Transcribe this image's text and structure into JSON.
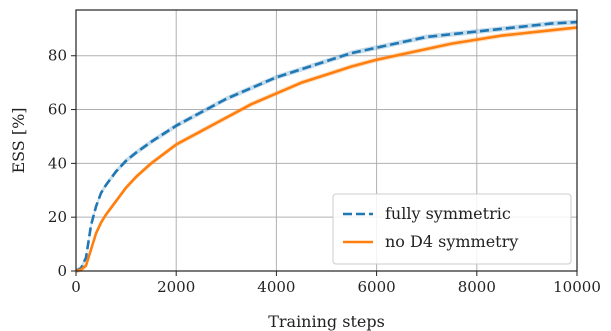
{
  "chart_data": {
    "type": "line",
    "title": "",
    "xlabel": "Training steps",
    "ylabel": "ESS [%]",
    "xlim": [
      0,
      10000
    ],
    "ylim": [
      0,
      97
    ],
    "xticks": [
      0,
      2000,
      4000,
      6000,
      8000,
      10000
    ],
    "yticks": [
      0,
      20,
      40,
      60,
      80
    ],
    "grid": true,
    "legend_position": "lower-right",
    "series": [
      {
        "name": "fully symmetric",
        "color": "#1f77b4",
        "style": "dashed",
        "band": true,
        "x": [
          0,
          100,
          200,
          300,
          400,
          500,
          600,
          800,
          1000,
          1200,
          1500,
          2000,
          2500,
          3000,
          3500,
          4000,
          4500,
          5000,
          5500,
          6000,
          6500,
          7000,
          7500,
          8000,
          8500,
          9000,
          9500,
          10000
        ],
        "y": [
          0,
          1,
          5,
          17,
          24,
          29,
          32,
          37,
          41,
          44,
          48,
          54,
          59,
          64,
          68,
          72,
          75,
          78,
          81,
          83,
          85,
          87,
          88,
          89,
          90,
          91,
          92,
          92.5
        ]
      },
      {
        "name": "no D4 symmetry",
        "color": "#ff7f0e",
        "style": "solid",
        "band": true,
        "x": [
          0,
          100,
          200,
          300,
          400,
          500,
          600,
          800,
          1000,
          1200,
          1500,
          2000,
          2500,
          3000,
          3500,
          4000,
          4500,
          5000,
          5500,
          6000,
          6500,
          7000,
          7500,
          8000,
          8500,
          9000,
          9500,
          10000
        ],
        "y": [
          0,
          0.5,
          2,
          8,
          14,
          18,
          21,
          26,
          31,
          35,
          40,
          47,
          52,
          57,
          62,
          66,
          70,
          73,
          76,
          78.5,
          80.5,
          82.5,
          84.5,
          86,
          87.5,
          88.5,
          89.5,
          90.5
        ]
      }
    ]
  }
}
